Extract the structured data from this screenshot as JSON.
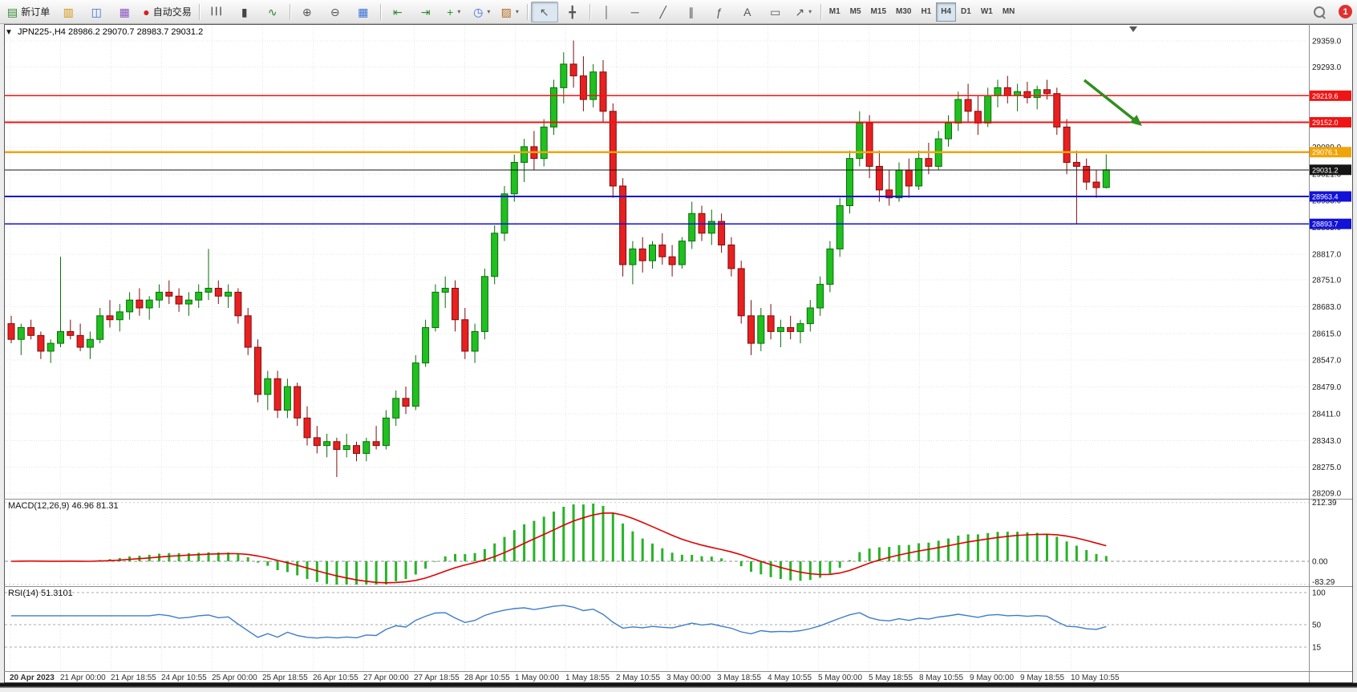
{
  "toolbar": {
    "dropdown_caret": "▾",
    "notification_count": "1",
    "buttons": [
      {
        "name": "new-order-button",
        "icon": "new-order-icon",
        "glyph": "▤",
        "glyph_color": "#2e8b2e",
        "label": "新订单"
      },
      {
        "name": "chart-window-button",
        "icon": "chart-window-icon",
        "glyph": "▥",
        "glyph_color": "#d4930a"
      },
      {
        "name": "profiles-button",
        "icon": "profiles-icon",
        "glyph": "◫",
        "glyph_color": "#3a6fd8"
      },
      {
        "name": "data-window-button",
        "icon": "data-window-icon",
        "glyph": "▦",
        "glyph_color": "#8a55c0"
      },
      {
        "name": "autotrading-button",
        "icon": "autotrading-icon",
        "glyph": "●",
        "glyph_color": "#d92020",
        "label": "自动交易"
      },
      {
        "sep": true
      },
      {
        "name": "bar-chart-button",
        "icon": "ohlc-bars-icon",
        "glyph": "┃┃┃",
        "glyph_size": 9
      },
      {
        "name": "candle-chart-button",
        "icon": "candlestick-icon",
        "glyph": "▮",
        "glyph_color": "#444444"
      },
      {
        "name": "line-chart-button",
        "icon": "line-chart-icon",
        "glyph": "∿",
        "glyph_color": "#2a7d2a"
      },
      {
        "sep": true
      },
      {
        "name": "zoom-in-button",
        "icon": "zoom-in-icon",
        "glyph": "⊕",
        "glyph_color": "#555555"
      },
      {
        "name": "zoom-out-button",
        "icon": "zoom-out-icon",
        "glyph": "⊖",
        "glyph_color": "#555555"
      },
      {
        "name": "tile-windows-button",
        "icon": "tile-windows-icon",
        "glyph": "▦",
        "glyph_color": "#3a6fd8"
      },
      {
        "sep": true
      },
      {
        "name": "auto-scroll-button",
        "icon": "auto-scroll-icon",
        "glyph": "⇤",
        "glyph_color": "#2e8b2e"
      },
      {
        "name": "chart-shift-button",
        "icon": "chart-shift-icon",
        "glyph": "⇥",
        "glyph_color": "#2e8b2e"
      },
      {
        "name": "indicators-button",
        "icon": "indicators-plus-icon",
        "glyph": "+",
        "glyph_color": "#1f9d1f",
        "dropdown": true
      },
      {
        "name": "periods-button",
        "icon": "clock-icon",
        "glyph": "◷",
        "glyph_color": "#3a6fd8",
        "dropdown": true
      },
      {
        "name": "templates-button",
        "icon": "templates-icon",
        "glyph": "▨",
        "glyph_color": "#b06a20",
        "dropdown": true
      },
      {
        "sep": true
      },
      {
        "name": "cursor-button",
        "icon": "cursor-icon",
        "glyph": "↖",
        "active": true
      },
      {
        "name": "crosshair-button",
        "icon": "crosshair-icon",
        "glyph": "╋"
      },
      {
        "sep": true
      },
      {
        "name": "vertical-line-button",
        "icon": "vertical-line-icon",
        "glyph": "│"
      },
      {
        "name": "horizontal-line-button",
        "icon": "horizontal-line-icon",
        "glyph": "─"
      },
      {
        "name": "trendline-button",
        "icon": "trendline-icon",
        "glyph": "╱"
      },
      {
        "name": "channel-button",
        "icon": "channel-icon",
        "glyph": "∥"
      },
      {
        "name": "fibonacci-button",
        "icon": "fibonacci-icon",
        "glyph": "ƒ"
      },
      {
        "name": "text-button",
        "icon": "text-icon",
        "glyph": "A"
      },
      {
        "name": "text-label-button",
        "icon": "text-label-icon",
        "glyph": "▭"
      },
      {
        "name": "arrows-button",
        "icon": "arrow-objects-icon",
        "glyph": "↗",
        "dropdown": true
      },
      {
        "sep": true
      }
    ],
    "timeframes": {
      "items": [
        "M1",
        "M5",
        "M15",
        "M30",
        "H1",
        "H4",
        "D1",
        "W1",
        "MN"
      ],
      "active": "H4"
    }
  },
  "chart": {
    "title": "JPN225-,H4 28986.2 29070.7 28983.7 29031.2",
    "expander_icon": "▼"
  },
  "chart_data": {
    "type": "candlestick",
    "symbol": "JPN225-",
    "timeframe": "H4",
    "current": {
      "open": 28986.2,
      "high": 29070.7,
      "low": 28983.7,
      "close": 29031.2
    },
    "up_color": "#1fc01f",
    "down_color": "#e82020",
    "grid": true,
    "candles": [
      [
        28640,
        28660,
        28590,
        28600
      ],
      [
        28600,
        28640,
        28560,
        28630
      ],
      [
        28630,
        28650,
        28600,
        28610
      ],
      [
        28610,
        28620,
        28550,
        28570
      ],
      [
        28570,
        28600,
        28540,
        28590
      ],
      [
        28590,
        28810,
        28580,
        28620
      ],
      [
        28620,
        28650,
        28600,
        28610
      ],
      [
        28610,
        28640,
        28570,
        28580
      ],
      [
        28580,
        28620,
        28550,
        28600
      ],
      [
        28600,
        28680,
        28590,
        28660
      ],
      [
        28660,
        28700,
        28630,
        28650
      ],
      [
        28650,
        28690,
        28620,
        28670
      ],
      [
        28670,
        28720,
        28650,
        28700
      ],
      [
        28700,
        28730,
        28660,
        28680
      ],
      [
        28680,
        28710,
        28650,
        28700
      ],
      [
        28700,
        28740,
        28680,
        28720
      ],
      [
        28720,
        28750,
        28690,
        28710
      ],
      [
        28710,
        28730,
        28670,
        28690
      ],
      [
        28690,
        28720,
        28660,
        28700
      ],
      [
        28700,
        28740,
        28680,
        28720
      ],
      [
        28720,
        28830,
        28700,
        28730
      ],
      [
        28730,
        28750,
        28690,
        28710
      ],
      [
        28710,
        28740,
        28680,
        28720
      ],
      [
        28720,
        28730,
        28640,
        28660
      ],
      [
        28660,
        28680,
        28560,
        28580
      ],
      [
        28580,
        28600,
        28440,
        28460
      ],
      [
        28460,
        28520,
        28420,
        28500
      ],
      [
        28500,
        28520,
        28400,
        28420
      ],
      [
        28420,
        28500,
        28400,
        28480
      ],
      [
        28480,
        28490,
        28380,
        28400
      ],
      [
        28400,
        28430,
        28330,
        28350
      ],
      [
        28350,
        28380,
        28310,
        28330
      ],
      [
        28330,
        28360,
        28300,
        28340
      ],
      [
        28340,
        28350,
        28250,
        28320
      ],
      [
        28320,
        28360,
        28300,
        28330
      ],
      [
        28330,
        28340,
        28290,
        28310
      ],
      [
        28310,
        28350,
        28290,
        28340
      ],
      [
        28340,
        28380,
        28320,
        28330
      ],
      [
        28330,
        28420,
        28320,
        28400
      ],
      [
        28400,
        28470,
        28380,
        28450
      ],
      [
        28450,
        28480,
        28410,
        28430
      ],
      [
        28430,
        28560,
        28420,
        28540
      ],
      [
        28540,
        28650,
        28530,
        28630
      ],
      [
        28630,
        28740,
        28620,
        28720
      ],
      [
        28720,
        28760,
        28680,
        28730
      ],
      [
        28730,
        28750,
        28620,
        28650
      ],
      [
        28650,
        28680,
        28550,
        28570
      ],
      [
        28570,
        28640,
        28540,
        28620
      ],
      [
        28620,
        28780,
        28600,
        28760
      ],
      [
        28760,
        28890,
        28740,
        28870
      ],
      [
        28870,
        28990,
        28850,
        28970
      ],
      [
        28970,
        29070,
        28950,
        29050
      ],
      [
        29050,
        29110,
        29000,
        29090
      ],
      [
        29090,
        29130,
        29030,
        29060
      ],
      [
        29060,
        29160,
        29040,
        29140
      ],
      [
        29140,
        29260,
        29120,
        29240
      ],
      [
        29240,
        29330,
        29200,
        29300
      ],
      [
        29300,
        29360,
        29240,
        29270
      ],
      [
        29270,
        29320,
        29180,
        29210
      ],
      [
        29210,
        29300,
        29190,
        29280
      ],
      [
        29280,
        29310,
        29150,
        29180
      ],
      [
        29180,
        29200,
        28960,
        28990
      ],
      [
        28990,
        29010,
        28760,
        28790
      ],
      [
        28790,
        28850,
        28740,
        28830
      ],
      [
        28830,
        28860,
        28770,
        28800
      ],
      [
        28800,
        28850,
        28780,
        28840
      ],
      [
        28840,
        28870,
        28790,
        28810
      ],
      [
        28810,
        28840,
        28760,
        28790
      ],
      [
        28790,
        28860,
        28780,
        28850
      ],
      [
        28850,
        28950,
        28830,
        28920
      ],
      [
        28920,
        28940,
        28850,
        28870
      ],
      [
        28870,
        28930,
        28840,
        28900
      ],
      [
        28900,
        28920,
        28820,
        28840
      ],
      [
        28840,
        28860,
        28760,
        28780
      ],
      [
        28780,
        28800,
        28640,
        28660
      ],
      [
        28660,
        28700,
        28560,
        28590
      ],
      [
        28590,
        28680,
        28570,
        28660
      ],
      [
        28660,
        28690,
        28600,
        28620
      ],
      [
        28620,
        28650,
        28580,
        28630
      ],
      [
        28630,
        28660,
        28600,
        28620
      ],
      [
        28620,
        28650,
        28590,
        28640
      ],
      [
        28640,
        28700,
        28620,
        28680
      ],
      [
        28680,
        28760,
        28660,
        28740
      ],
      [
        28740,
        28850,
        28720,
        28830
      ],
      [
        28830,
        28960,
        28810,
        28940
      ],
      [
        28940,
        29080,
        28920,
        29060
      ],
      [
        29060,
        29180,
        29040,
        29150
      ],
      [
        29150,
        29170,
        29010,
        29040
      ],
      [
        29040,
        29080,
        28950,
        28980
      ],
      [
        28980,
        29030,
        28940,
        28960
      ],
      [
        28960,
        29050,
        28950,
        29030
      ],
      [
        29030,
        29060,
        28960,
        28990
      ],
      [
        28990,
        29080,
        28980,
        29060
      ],
      [
        29060,
        29100,
        29020,
        29040
      ],
      [
        29040,
        29130,
        29030,
        29110
      ],
      [
        29110,
        29170,
        29090,
        29150
      ],
      [
        29150,
        29230,
        29130,
        29210
      ],
      [
        29210,
        29250,
        29150,
        29180
      ],
      [
        29180,
        29220,
        29120,
        29150
      ],
      [
        29150,
        29240,
        29140,
        29220
      ],
      [
        29220,
        29260,
        29190,
        29240
      ],
      [
        29240,
        29270,
        29200,
        29220
      ],
      [
        29220,
        29250,
        29180,
        29230
      ],
      [
        29230,
        29255,
        29200,
        29215
      ],
      [
        29215,
        29245,
        29185,
        29235
      ],
      [
        29235,
        29260,
        29210,
        29225
      ],
      [
        29225,
        29240,
        29120,
        29140
      ],
      [
        29140,
        29160,
        29020,
        29050
      ],
      [
        29050,
        29080,
        28893,
        29040
      ],
      [
        29040,
        29060,
        28980,
        29000
      ],
      [
        29000,
        29030,
        28960,
        28986
      ],
      [
        28986.2,
        29070.7,
        28983.7,
        29031.2
      ]
    ],
    "y_axis": {
      "ticks": [
        "29359.0",
        "29293.0",
        "29225.0",
        "29157.0",
        "29089.0",
        "29021.0",
        "28953.0",
        "28885.0",
        "28817.0",
        "28751.0",
        "28683.0",
        "28615.0",
        "28547.0",
        "28479.0",
        "28411.0",
        "28343.0",
        "28275.0",
        "28209.0"
      ],
      "tick_prices": [
        29359,
        29293,
        29225,
        29157,
        29089,
        29021,
        28953,
        28885,
        28817,
        28751,
        28683,
        28615,
        28547,
        28479,
        28411,
        28343,
        28275,
        28209
      ]
    },
    "x_axis": {
      "labels": [
        "20 Apr 2023",
        "21 Apr 00:00",
        "21 Apr 18:55",
        "24 Apr 10:55",
        "25 Apr 00:00",
        "25 Apr 18:55",
        "26 Apr 10:55",
        "27 Apr 00:00",
        "27 Apr 18:55",
        "28 Apr 10:55",
        "1 May 00:00",
        "1 May 18:55",
        "2 May 10:55",
        "3 May 00:00",
        "3 May 18:55",
        "4 May 10:55",
        "5 May 00:00",
        "5 May 18:55",
        "8 May 10:55",
        "9 May 00:00",
        "9 May 18:55",
        "10 May 10:55"
      ]
    },
    "hlines": [
      {
        "name": "resistance-line-1",
        "price": 29219.6,
        "label": "29219.6",
        "color": "#f01414",
        "width": 1.6
      },
      {
        "name": "resistance-line-2",
        "price": 29152.0,
        "label": "29152.0",
        "color": "#f01414",
        "width": 1.6
      },
      {
        "name": "pivot-line",
        "price": 29076.1,
        "label": "29076.1",
        "color": "#efa50a",
        "width": 2.2
      },
      {
        "name": "current-price-line",
        "price": 29031.2,
        "label": "29031.2",
        "color": "#151515",
        "width": 1
      },
      {
        "name": "support-line-1",
        "price": 28963.4,
        "label": "28963.4",
        "color": "#1212d8",
        "width": 1.8
      },
      {
        "name": "support-line-2",
        "price": 28893.7,
        "label": "28893.7",
        "color": "#1212d8",
        "width": 1.8
      }
    ],
    "annotations": [
      {
        "name": "down-trend-arrow",
        "type": "arrow",
        "direction": "down-right",
        "color": "#2f8f1f"
      }
    ],
    "indicators": [
      {
        "name": "MACD",
        "title": "MACD(12,26,9) 46.96 81.31",
        "params": [
          12,
          26,
          9
        ],
        "value_main": 46.96,
        "value_signal": 81.31,
        "axis_labels": [
          "212.39",
          "0.00",
          "-83.29"
        ],
        "axis_values": [
          212.39,
          0,
          -83.29
        ],
        "histogram_color": "#27b427",
        "signal_color": "#e00000"
      },
      {
        "name": "RSI",
        "title": "RSI(14) 51.3101",
        "params": [
          14
        ],
        "value": 51.3101,
        "axis_labels": [
          "100",
          "50",
          "15"
        ],
        "axis_values": [
          100,
          50,
          15
        ],
        "line_color": "#3d7dc8"
      }
    ]
  }
}
